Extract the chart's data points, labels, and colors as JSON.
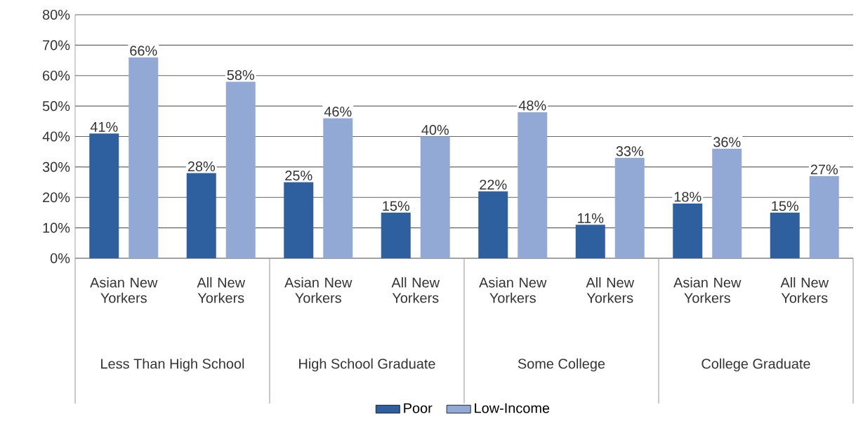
{
  "chart_data": {
    "type": "bar",
    "categories": [
      "Asian New Yorkers",
      "All New Yorkers",
      "Asian New Yorkers",
      "All New Yorkers",
      "Asian New Yorkers",
      "All New Yorkers",
      "Asian New Yorkers",
      "All New Yorkers"
    ],
    "series": [
      {
        "name": "Poor",
        "color": "#2e5f9e",
        "values": [
          41,
          28,
          25,
          15,
          22,
          11,
          18,
          15
        ],
        "value_labels": [
          "41%",
          "28%",
          "25%",
          "15%",
          "22%",
          "11%",
          "18%",
          "15%"
        ]
      },
      {
        "name": "Low-Income",
        "color": "#93a9d5",
        "values": [
          66,
          58,
          46,
          40,
          48,
          33,
          36,
          27
        ],
        "value_labels": [
          "66%",
          "58%",
          "46%",
          "40%",
          "48%",
          "33%",
          "36%",
          "27%"
        ]
      }
    ],
    "ylim": [
      0,
      80
    ],
    "yticks": [
      {
        "value": 0,
        "label": "0%"
      },
      {
        "value": 10,
        "label": "10%"
      },
      {
        "value": 20,
        "label": "20%"
      },
      {
        "value": 30,
        "label": "30%"
      },
      {
        "value": 40,
        "label": "40%"
      },
      {
        "value": 50,
        "label": "50%"
      },
      {
        "value": 60,
        "label": "60%"
      },
      {
        "value": 70,
        "label": "70%"
      },
      {
        "value": 80,
        "label": "80%"
      }
    ],
    "grid": "y",
    "legend": "bottom",
    "annotations": [
      "Less Than High School",
      "High School Graduate",
      "Some College",
      "College Graduate"
    ]
  }
}
